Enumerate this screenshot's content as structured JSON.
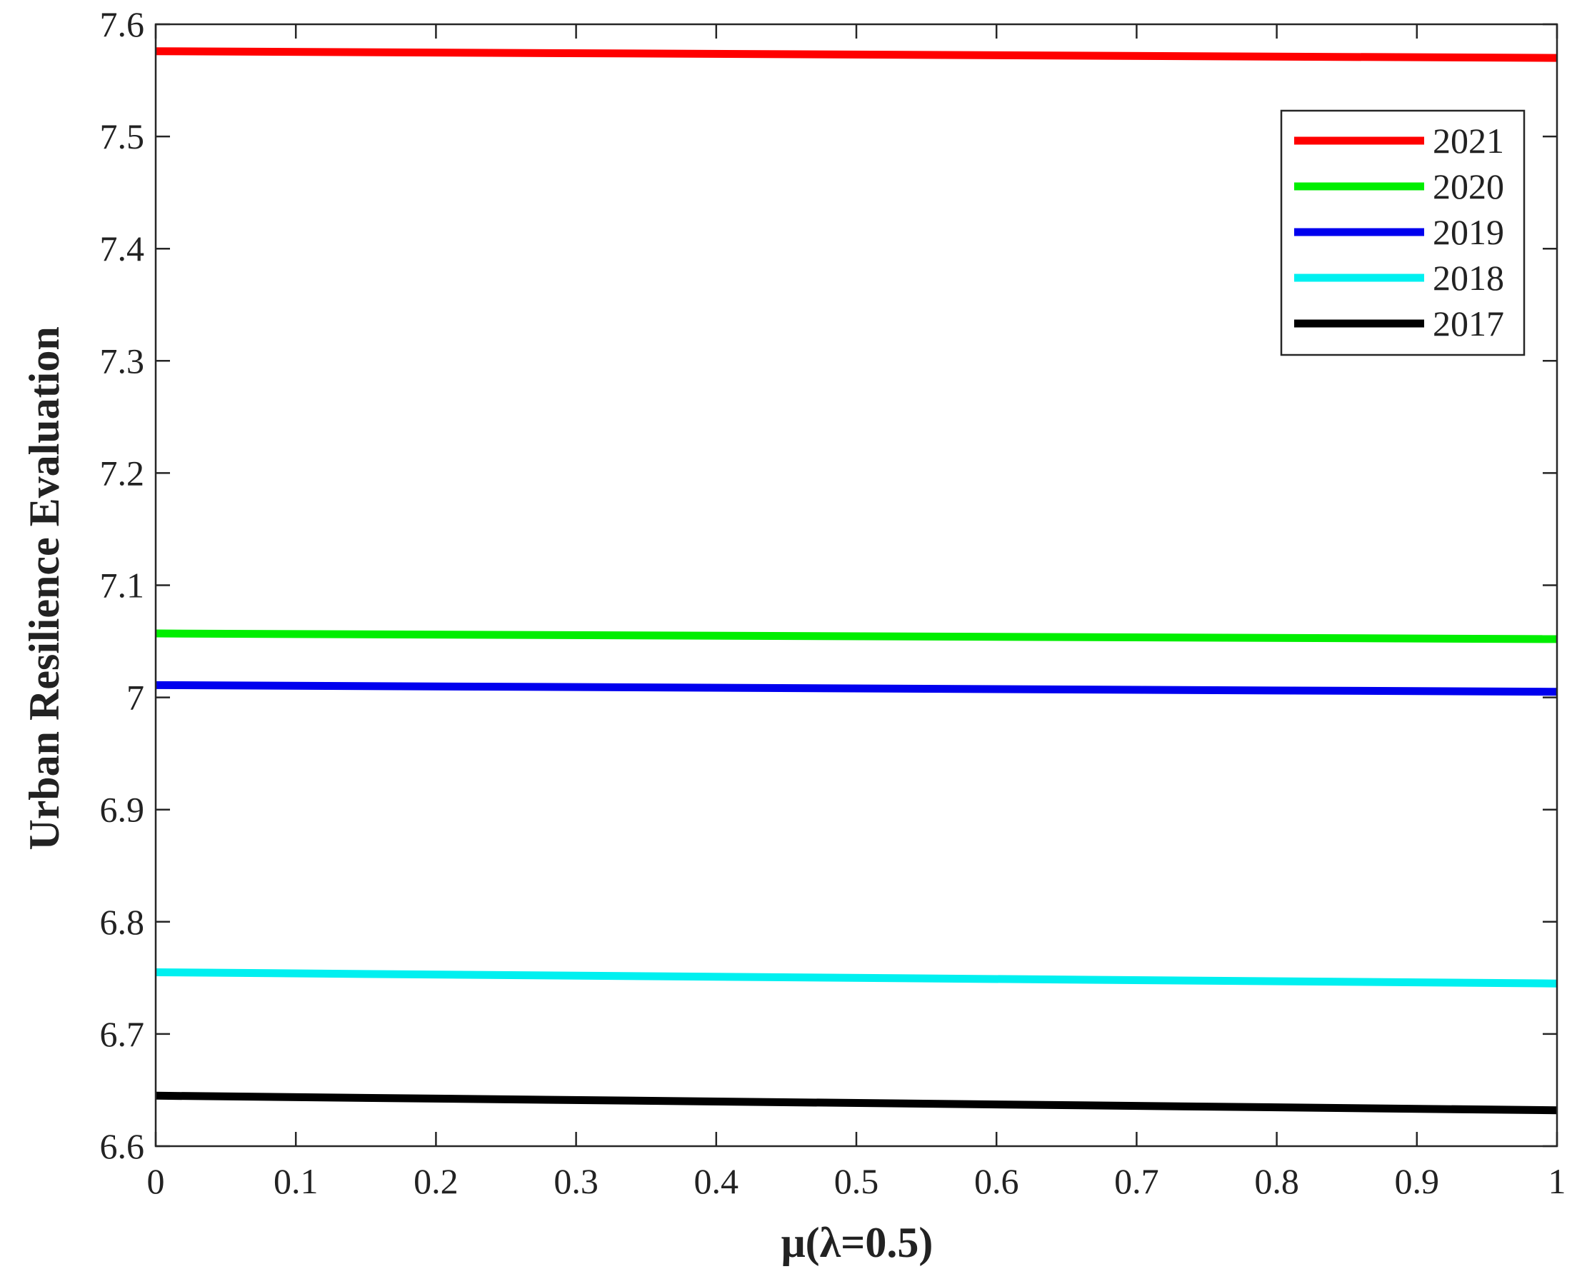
{
  "chart_data": {
    "type": "line",
    "xlabel": "μ(λ=0.5)",
    "ylabel": "Urban Resilience Evaluation",
    "xlim": [
      0,
      1
    ],
    "ylim": [
      6.6,
      7.6
    ],
    "xticks": [
      0,
      0.1,
      0.2,
      0.3,
      0.4,
      0.5,
      0.6,
      0.7,
      0.8,
      0.9,
      1
    ],
    "xtick_labels": [
      "0",
      "0.1",
      "0.2",
      "0.3",
      "0.4",
      "0.5",
      "0.6",
      "0.7",
      "0.8",
      "0.9",
      "1"
    ],
    "yticks": [
      6.6,
      6.7,
      6.8,
      6.9,
      7.0,
      7.1,
      7.2,
      7.3,
      7.4,
      7.5,
      7.6
    ],
    "ytick_labels": [
      "6.6",
      "6.7",
      "6.8",
      "6.9",
      "7",
      "7.1",
      "7.2",
      "7.3",
      "7.4",
      "7.5",
      "7.6"
    ],
    "grid": false,
    "legend_position": "top-right",
    "x": [
      0,
      1
    ],
    "series": [
      {
        "name": "2021",
        "color": "#ff0000",
        "values": [
          7.576,
          7.57
        ]
      },
      {
        "name": "2020",
        "color": "#00ee00",
        "values": [
          7.057,
          7.052
        ]
      },
      {
        "name": "2019",
        "color": "#0000ee",
        "values": [
          7.011,
          7.005
        ]
      },
      {
        "name": "2018",
        "color": "#00f0f0",
        "values": [
          6.755,
          6.745
        ]
      },
      {
        "name": "2017",
        "color": "#000000",
        "values": [
          6.645,
          6.632
        ]
      }
    ]
  }
}
